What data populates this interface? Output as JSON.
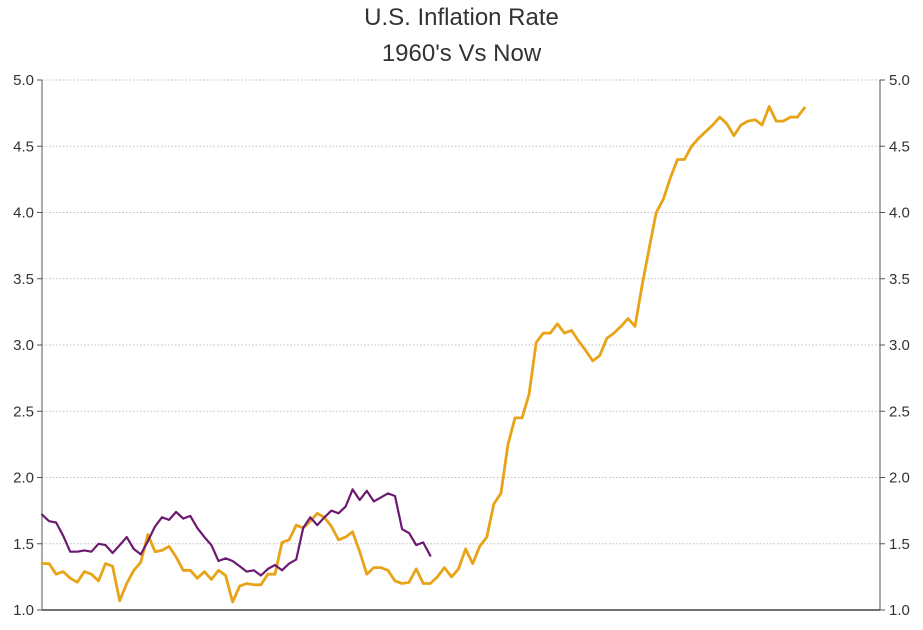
{
  "chart_data": {
    "type": "line",
    "title": "U.S. Inflation Rate",
    "subtitle": "1960's Vs Now",
    "xlabel": "",
    "ylabel": "",
    "ylim": [
      1.0,
      5.0
    ],
    "yticks": [
      "1.0",
      "1.5",
      "2.0",
      "2.5",
      "3.0",
      "3.5",
      "4.0",
      "4.5",
      "5.0"
    ],
    "grid": true,
    "legend": "none",
    "series": [
      {
        "color": "#6b1a6f",
        "values": [
          1.72,
          1.67,
          1.66,
          1.56,
          1.44,
          1.44,
          1.45,
          1.44,
          1.5,
          1.49,
          1.43,
          1.49,
          1.55,
          1.46,
          1.42,
          1.52,
          1.63,
          1.7,
          1.68,
          1.74,
          1.69,
          1.71,
          1.62,
          1.55,
          1.49,
          1.37,
          1.39,
          1.37,
          1.33,
          1.29,
          1.3,
          1.26,
          1.31,
          1.34,
          1.3,
          1.35,
          1.38,
          1.62,
          1.7,
          1.64,
          1.7,
          1.75,
          1.73,
          1.78,
          1.91,
          1.83,
          1.9,
          1.82,
          1.85,
          1.88,
          1.86,
          1.61,
          1.58,
          1.49,
          1.51,
          1.41
        ]
      },
      {
        "color": "#e8a317",
        "values": [
          1.35,
          1.35,
          1.27,
          1.29,
          1.24,
          1.21,
          1.29,
          1.27,
          1.22,
          1.35,
          1.33,
          1.07,
          1.2,
          1.3,
          1.36,
          1.57,
          1.44,
          1.45,
          1.48,
          1.4,
          1.3,
          1.3,
          1.24,
          1.29,
          1.23,
          1.3,
          1.26,
          1.06,
          1.18,
          1.2,
          1.19,
          1.19,
          1.27,
          1.27,
          1.51,
          1.53,
          1.64,
          1.62,
          1.67,
          1.73,
          1.7,
          1.63,
          1.53,
          1.55,
          1.59,
          1.44,
          1.27,
          1.32,
          1.32,
          1.3,
          1.22,
          1.2,
          1.21,
          1.31,
          1.2,
          1.2,
          1.25,
          1.32,
          1.25,
          1.31,
          1.46,
          1.35,
          1.48,
          1.55,
          1.8,
          1.88,
          2.25,
          2.45,
          2.45,
          2.63,
          3.02,
          3.09,
          3.09,
          3.16,
          3.09,
          3.11,
          3.03,
          2.96,
          2.88,
          2.92,
          3.05,
          3.09,
          3.14,
          3.2,
          3.14,
          3.45,
          3.73,
          4.0,
          4.1,
          4.26,
          4.4,
          4.4,
          4.5,
          4.56,
          4.61,
          4.66,
          4.72,
          4.67,
          4.58,
          4.66,
          4.69,
          4.7,
          4.66,
          4.8,
          4.69,
          4.69,
          4.72,
          4.72,
          4.79
        ]
      }
    ]
  }
}
